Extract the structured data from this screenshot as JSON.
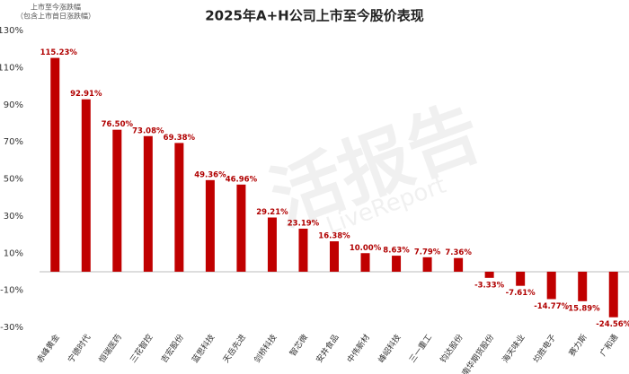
{
  "chart_data": {
    "type": "bar",
    "title": "2025年A+H公司上市至今股价表现",
    "y_label": "上市至今涨跌幅",
    "y_sublabel": "（包含上市首日涨跌幅）",
    "watermark": "活报告",
    "watermark_sub": "LiveReport",
    "categories": [
      "赤峰黄金",
      "宁德时代",
      "恒瑞医药",
      "三花智控",
      "吉宏股份",
      "蓝思科技",
      "天岳先进",
      "剑桥科技",
      "智芯微",
      "安井食品",
      "中伟新材",
      "峰岹科技",
      "三一重工",
      "钧达股份",
      "南华期货股份",
      "海天味业",
      "均胜电子",
      "赛力斯",
      "广和通"
    ],
    "values": [
      115.23,
      92.91,
      76.5,
      73.08,
      69.38,
      49.36,
      46.96,
      29.21,
      23.19,
      16.38,
      10.0,
      8.63,
      7.79,
      7.36,
      -3.33,
      -7.61,
      -14.77,
      -15.89,
      -24.56
    ],
    "value_labels": [
      "115.23%",
      "92.91%",
      "76.50%",
      "73.08%",
      "69.38%",
      "49.36%",
      "46.96%",
      "29.21%",
      "23.19%",
      "16.38%",
      "10.00%",
      "8.63%",
      "7.79%",
      "7.36%",
      "-3.33%",
      "-7.61%",
      "-14.77%",
      "-15.89%",
      "-24.56%"
    ],
    "color": "#c00000",
    "ylim": [
      -30,
      130
    ],
    "yticks": [
      {
        "value": -30,
        "label": "-30%"
      },
      {
        "value": -10,
        "label": "-10%"
      },
      {
        "value": 10,
        "label": "10%"
      },
      {
        "value": 30,
        "label": "30%"
      },
      {
        "value": 50,
        "label": "50%"
      },
      {
        "value": 70,
        "label": "70%"
      },
      {
        "value": 90,
        "label": "90%"
      },
      {
        "value": 110,
        "label": "110%"
      },
      {
        "value": 130,
        "label": "130%"
      }
    ],
    "grid": false
  }
}
